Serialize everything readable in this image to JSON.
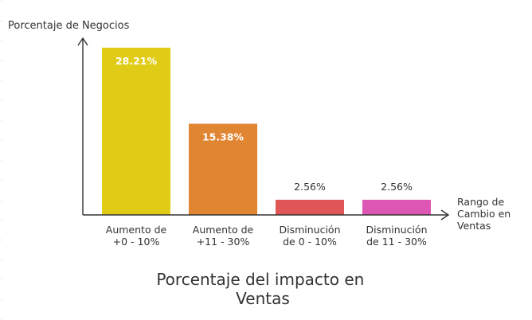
{
  "chart_data": {
    "type": "bar",
    "title": [
      "Porcentaje del impacto en",
      "Ventas"
    ],
    "ylabel": "Porcentaje de Negocios",
    "xlabel": [
      "Rango de",
      "Cambio en",
      "Ventas"
    ],
    "ylim": [
      0,
      29
    ],
    "grid": false,
    "categories": [
      [
        "Aumento de",
        "+0 - 10%"
      ],
      [
        "Aumento de",
        "+11 - 30%"
      ],
      [
        "Disminución",
        "de 0 - 10%"
      ],
      [
        "Disminución",
        "de 11 - 30%"
      ]
    ],
    "values": [
      28.21,
      15.38,
      2.56,
      2.56
    ],
    "value_labels": [
      "28.21%",
      "15.38%",
      "2.56%",
      "2.56%"
    ],
    "colors": [
      "#e0cc16",
      "#e08532",
      "#e05555",
      "#de56b4"
    ],
    "axis_color": "#333333"
  }
}
